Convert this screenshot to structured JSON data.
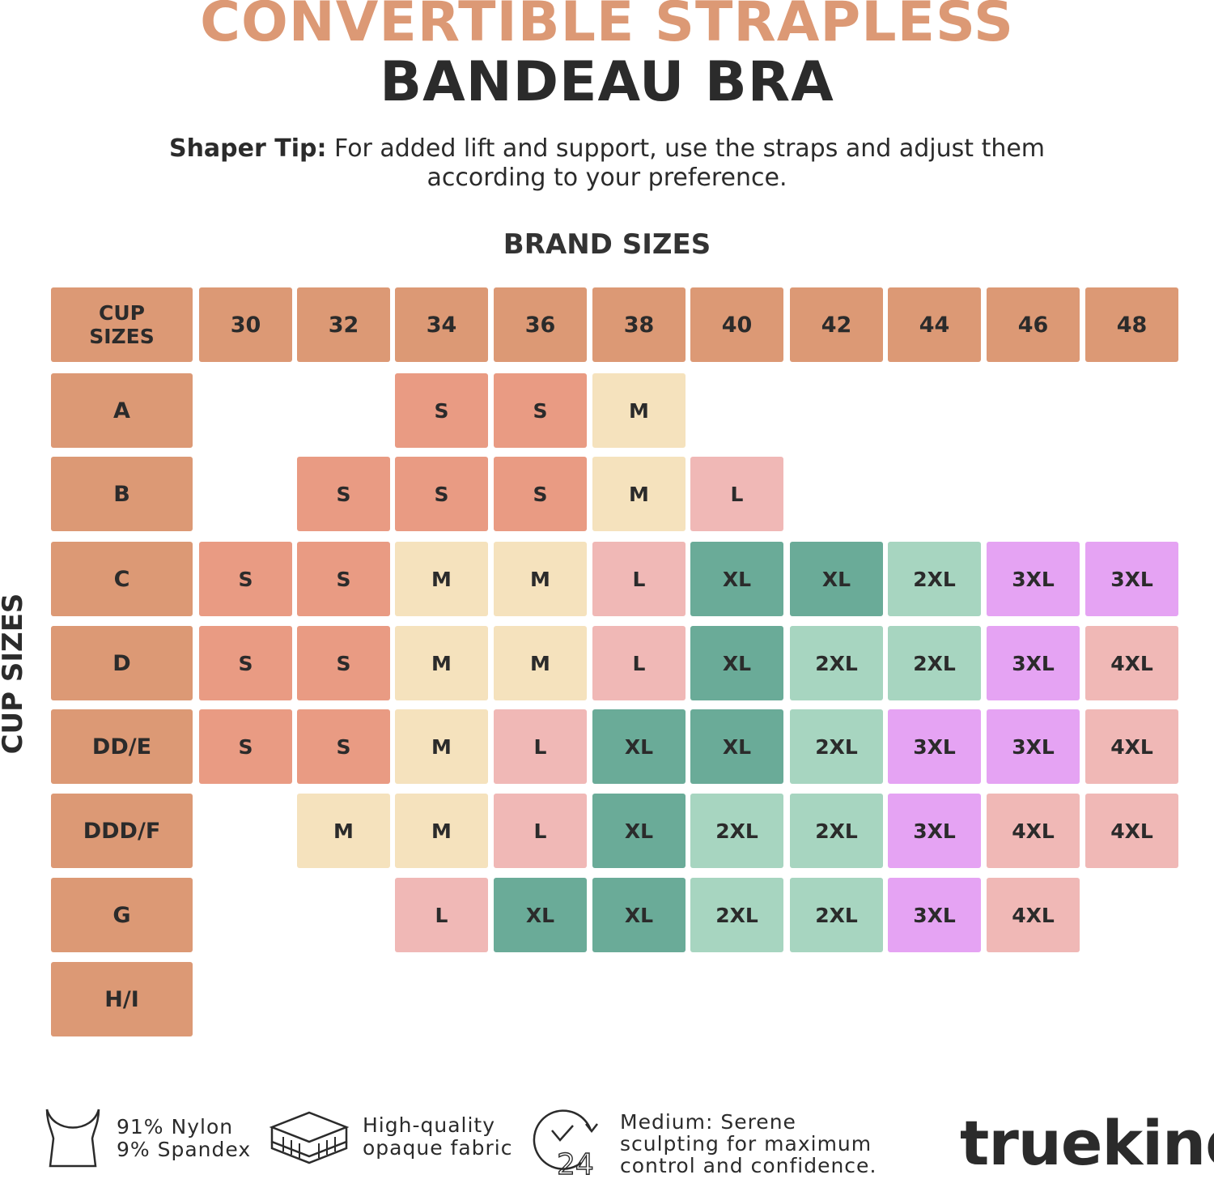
{
  "header": {
    "title_line1": "CONVERTIBLE STRAPLESS",
    "title_line2": "BANDEAU BRA",
    "tip_label": "Shaper Tip:",
    "tip_text": "For added lift and support, use the straps and adjust them according to your preference."
  },
  "chart_data": {
    "type": "table",
    "title": "BRAND SIZES",
    "row_axis_label": "CUP SIZES",
    "corner_label": "CUP SIZES",
    "columns": [
      "30",
      "32",
      "34",
      "36",
      "38",
      "40",
      "42",
      "44",
      "46",
      "48"
    ],
    "rows": [
      {
        "cup": "A",
        "sizes": [
          "",
          "",
          "S",
          "S",
          "M",
          "",
          "",
          "",
          "",
          ""
        ]
      },
      {
        "cup": "B",
        "sizes": [
          "",
          "S",
          "S",
          "S",
          "M",
          "L",
          "",
          "",
          "",
          ""
        ]
      },
      {
        "cup": "C",
        "sizes": [
          "S",
          "S",
          "M",
          "M",
          "L",
          "XL",
          "XL",
          "2XL",
          "3XL",
          "3XL"
        ]
      },
      {
        "cup": "D",
        "sizes": [
          "S",
          "S",
          "M",
          "M",
          "L",
          "XL",
          "2XL",
          "2XL",
          "3XL",
          "4XL"
        ]
      },
      {
        "cup": "DD/E",
        "sizes": [
          "S",
          "S",
          "M",
          "L",
          "XL",
          "XL",
          "2XL",
          "3XL",
          "3XL",
          "4XL"
        ]
      },
      {
        "cup": "DDD/F",
        "sizes": [
          "",
          "M",
          "M",
          "L",
          "XL",
          "2XL",
          "2XL",
          "3XL",
          "4XL",
          "4XL"
        ]
      },
      {
        "cup": "G",
        "sizes": [
          "",
          "",
          "L",
          "XL",
          "XL",
          "2XL",
          "2XL",
          "3XL",
          "4XL",
          ""
        ]
      },
      {
        "cup": "H/I",
        "sizes": [
          "",
          "",
          "",
          "",
          "",
          "",
          "",
          "",
          "",
          ""
        ]
      }
    ],
    "size_colors": {
      "S": "#e99b83",
      "M": "#f5e2bd",
      "L": "#f0b8b6",
      "XL": "#6aab98",
      "2XL": "#a7d5c0",
      "3XL": "#e5a3f3",
      "4XL": "#f0b8b6"
    },
    "header_color": "#dc9975"
  },
  "footer": {
    "material_icon": "bra-icon",
    "material_line1": "91% Nylon",
    "material_line2": "9% Spandex",
    "fabric_icon": "fabric-layers-icon",
    "fabric_line1": "High-quality",
    "fabric_line2": "opaque fabric",
    "wear_icon": "24-hour-clock-icon",
    "wear_icon_text": "24",
    "wear_line1": "Medium: Serene",
    "wear_line2": "sculpting for maximum",
    "wear_line3": "control and confidence.",
    "logo": "truekind"
  }
}
